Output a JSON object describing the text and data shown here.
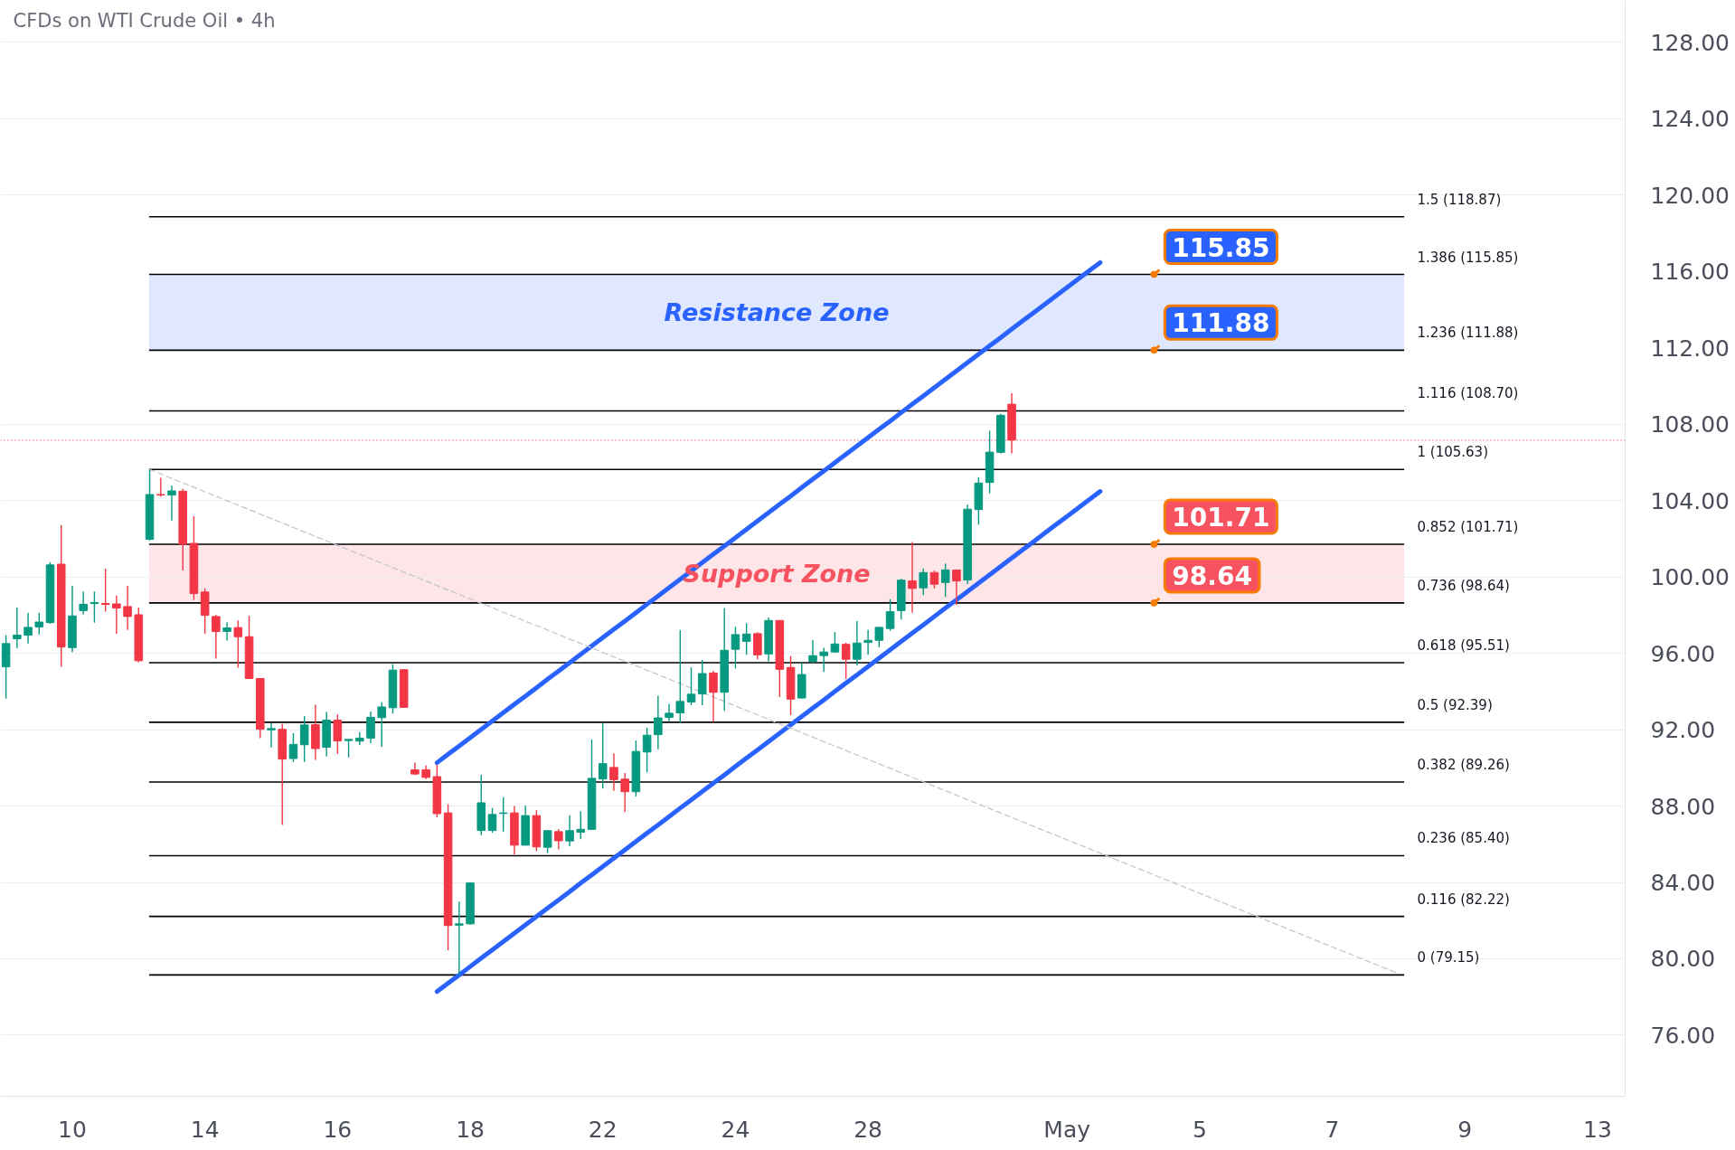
{
  "chart_data": {
    "type": "candlestick",
    "title": "CFDs on WTI Crude Oil • 4h",
    "categories": [
      null,
      null,
      null,
      null,
      null,
      null,
      "10",
      null,
      null,
      null,
      null,
      null,
      null,
      null,
      null,
      null,
      null,
      null,
      "14",
      null,
      null,
      null,
      null,
      null,
      null,
      null,
      null,
      null,
      null,
      null,
      "16",
      null,
      null,
      null,
      null,
      null,
      null,
      null,
      null,
      null,
      null,
      null,
      "18",
      null,
      null,
      null,
      null,
      null,
      null,
      null,
      null,
      null,
      null,
      null,
      "22",
      null,
      null,
      null,
      null,
      null,
      null,
      null,
      null,
      null,
      null,
      null,
      "24",
      null,
      null,
      null,
      null,
      null,
      null,
      null,
      null,
      null,
      null,
      null,
      "28",
      null,
      null,
      null,
      null,
      null,
      null,
      null,
      null,
      null,
      null,
      null,
      null,
      null,
      null,
      null,
      null,
      null,
      "May",
      null,
      null,
      null,
      null,
      null,
      null,
      null,
      null,
      null,
      null,
      null,
      "5",
      null,
      null,
      null,
      null,
      null,
      null,
      null,
      null,
      null,
      null,
      null,
      "7",
      null,
      null,
      null,
      null,
      null,
      null,
      null,
      null,
      null,
      null,
      null,
      "9",
      null,
      null,
      null,
      null,
      null,
      null,
      null,
      null,
      null,
      null,
      null,
      "13",
      null,
      null
    ],
    "ohlc": [
      [
        95.29,
        96.95,
        93.63,
        96.51
      ],
      [
        96.76,
        98.4,
        96.27,
        96.95
      ],
      [
        96.95,
        98.13,
        96.52,
        97.36
      ],
      [
        97.38,
        98.12,
        96.99,
        97.64
      ],
      [
        97.61,
        100.78,
        97.55,
        100.63
      ],
      [
        100.67,
        102.71,
        95.29,
        96.33
      ],
      [
        96.3,
        99.54,
        96.07,
        97.96
      ],
      [
        98.24,
        99.24,
        98.04,
        98.57
      ],
      [
        98.61,
        99.24,
        97.61,
        98.66
      ],
      [
        98.61,
        100.44,
        98.18,
        98.56
      ],
      [
        98.59,
        99.02,
        97.03,
        98.37
      ],
      [
        98.45,
        99.54,
        97.23,
        97.93
      ],
      [
        98.02,
        98.4,
        95.53,
        95.61
      ],
      [
        101.97,
        105.63,
        101.92,
        104.32
      ],
      [
        104.32,
        105.19,
        104.21,
        104.29
      ],
      [
        104.29,
        104.79,
        102.96,
        104.51
      ],
      [
        104.49,
        104.63,
        100.34,
        101.71
      ],
      [
        101.76,
        103.18,
        98.8,
        99.13
      ],
      [
        99.21,
        99.4,
        97.03,
        97.99
      ],
      [
        97.93,
        98.01,
        95.72,
        97.14
      ],
      [
        97.15,
        97.63,
        96.67,
        97.33
      ],
      [
        97.35,
        97.72,
        95.25,
        96.87
      ],
      [
        96.87,
        97.96,
        94.66,
        94.68
      ],
      [
        94.68,
        94.7,
        91.56,
        92.02
      ],
      [
        91.99,
        92.34,
        91.07,
        92.06
      ],
      [
        92.02,
        92.3,
        87.01,
        90.46
      ],
      [
        90.49,
        91.82,
        90.31,
        91.23
      ],
      [
        91.21,
        92.71,
        90.31,
        92.25
      ],
      [
        92.26,
        93.31,
        90.42,
        91.01
      ],
      [
        91.08,
        92.93,
        90.6,
        92.5
      ],
      [
        92.5,
        92.8,
        90.73,
        91.41
      ],
      [
        91.43,
        91.51,
        90.55,
        91.49
      ],
      [
        91.4,
        91.88,
        91.19,
        91.56
      ],
      [
        91.56,
        92.95,
        91.29,
        92.65
      ],
      [
        92.63,
        93.44,
        91.1,
        93.19
      ],
      [
        93.15,
        95.43,
        92.85,
        95.12
      ],
      [
        95.14,
        95.16,
        93.15,
        93.17
      ],
      [
        89.9,
        90.27,
        89.63,
        89.68
      ],
      [
        89.9,
        90.13,
        89.41,
        89.5
      ],
      [
        89.54,
        90.16,
        87.41,
        87.6
      ],
      [
        87.64,
        88.1,
        80.45,
        81.74
      ],
      [
        81.76,
        82.99,
        79.15,
        81.83
      ],
      [
        81.83,
        84.0,
        81.79,
        83.97
      ],
      [
        86.72,
        89.64,
        86.48,
        88.17
      ],
      [
        86.72,
        87.9,
        86.6,
        87.56
      ],
      [
        87.61,
        88.46,
        86.66,
        87.64
      ],
      [
        87.64,
        88.0,
        85.47,
        85.95
      ],
      [
        85.95,
        88.03,
        85.93,
        87.5
      ],
      [
        87.5,
        87.78,
        85.64,
        85.86
      ],
      [
        85.84,
        86.74,
        85.54,
        86.71
      ],
      [
        86.66,
        86.79,
        85.73,
        86.18
      ],
      [
        86.17,
        87.52,
        85.9,
        86.71
      ],
      [
        86.63,
        87.73,
        86.26,
        86.78
      ],
      [
        86.78,
        91.49,
        86.76,
        89.45
      ],
      [
        89.42,
        92.35,
        88.91,
        90.22
      ],
      [
        90.02,
        90.76,
        88.8,
        89.38
      ],
      [
        89.41,
        89.73,
        87.68,
        88.75
      ],
      [
        88.75,
        91.43,
        88.5,
        90.86
      ],
      [
        90.83,
        92.1,
        89.76,
        91.71
      ],
      [
        91.74,
        93.78,
        90.98,
        92.62
      ],
      [
        92.64,
        93.35,
        92.45,
        92.86
      ],
      [
        92.88,
        97.22,
        92.37,
        93.48
      ],
      [
        93.45,
        95.26,
        93.28,
        93.86
      ],
      [
        93.87,
        95.65,
        93.28,
        94.94
      ],
      [
        94.97,
        95.08,
        92.41,
        93.96
      ],
      [
        93.96,
        98.37,
        92.99,
        96.16
      ],
      [
        96.21,
        97.39,
        95.21,
        96.98
      ],
      [
        96.63,
        97.58,
        95.92,
        97.01
      ],
      [
        97.03,
        97.11,
        95.69,
        95.92
      ],
      [
        95.97,
        97.88,
        95.58,
        97.72
      ],
      [
        97.72,
        97.74,
        93.71,
        95.16
      ],
      [
        95.26,
        95.86,
        92.76,
        93.6
      ],
      [
        93.66,
        95.53,
        93.64,
        94.89
      ],
      [
        95.58,
        96.69,
        95.45,
        95.88
      ],
      [
        95.88,
        96.29,
        95.02,
        96.07
      ],
      [
        96.07,
        97.11,
        96.05,
        96.49
      ],
      [
        96.47,
        96.55,
        94.66,
        95.69
      ],
      [
        95.69,
        97.69,
        95.37,
        96.54
      ],
      [
        96.57,
        97.23,
        95.92,
        96.68
      ],
      [
        96.68,
        97.38,
        96.32,
        97.36
      ],
      [
        97.3,
        98.84,
        97.18,
        98.18
      ],
      [
        98.24,
        99.9,
        97.77,
        99.83
      ],
      [
        99.79,
        101.83,
        98.13,
        99.4
      ],
      [
        99.43,
        100.45,
        99.05,
        100.23
      ],
      [
        100.23,
        100.34,
        99.4,
        99.62
      ],
      [
        99.71,
        100.7,
        98.95,
        100.37
      ],
      [
        100.36,
        100.38,
        98.53,
        99.79
      ],
      [
        99.84,
        103.78,
        99.63,
        103.55
      ],
      [
        103.53,
        105.23,
        102.74,
        104.92
      ],
      [
        104.95,
        107.66,
        104.38,
        106.54
      ],
      [
        106.53,
        108.55,
        106.47,
        108.47
      ],
      [
        109.05,
        109.62,
        106.47,
        107.17
      ],
      null,
      null,
      null,
      null,
      null,
      null,
      null,
      null,
      null,
      null,
      null,
      null,
      null,
      null,
      null,
      null,
      null,
      null,
      null,
      null,
      null,
      null,
      null,
      null,
      null,
      null,
      null,
      null,
      null,
      null,
      null,
      null,
      null,
      null,
      null,
      null,
      null,
      null,
      null,
      null,
      null,
      null,
      null,
      null,
      null,
      null,
      null,
      null,
      null,
      null,
      null,
      null,
      null,
      null,
      null
    ],
    "colors": [
      "#089981",
      "#089981",
      "#089981",
      "#089981",
      "#089981",
      "#f23645",
      "#089981",
      "#089981",
      "#089981",
      "#f23645",
      "#f23645",
      "#f23645",
      "#f23645",
      "#089981",
      "#f23645",
      "#089981",
      "#f23645",
      "#f23645",
      "#f23645",
      "#f23645",
      "#089981",
      "#f23645",
      "#f23645",
      "#f23645",
      "#089981",
      "#f23645",
      "#089981",
      "#089981",
      "#f23645",
      "#089981",
      "#f23645",
      "#089981",
      "#089981",
      "#089981",
      "#089981",
      "#089981",
      "#f23645",
      "#f23645",
      "#f23645",
      "#f23645",
      "#f23645",
      "#089981",
      "#089981",
      "#089981",
      "#089981",
      "#089981",
      "#f23645",
      "#089981",
      "#f23645",
      "#089981",
      "#f23645",
      "#089981",
      "#089981",
      "#089981",
      "#089981",
      "#f23645",
      "#f23645",
      "#089981",
      "#089981",
      "#089981",
      "#089981",
      "#089981",
      "#089981",
      "#089981",
      "#f23645",
      "#089981",
      "#089981",
      "#089981",
      "#f23645",
      "#089981",
      "#f23645",
      "#f23645",
      "#089981",
      "#089981",
      "#089981",
      "#089981",
      "#f23645",
      "#089981",
      "#089981",
      "#089981",
      "#089981",
      "#089981",
      "#f23645",
      "#089981",
      "#f23645",
      "#089981",
      "#f23645",
      "#089981",
      "#089981",
      "#089981",
      "#089981",
      "#f23645",
      null,
      null,
      null,
      null,
      null,
      null,
      null,
      null,
      null,
      null,
      null,
      null,
      null,
      null,
      null,
      null,
      null,
      null,
      null,
      null,
      null,
      null,
      null,
      null,
      null,
      null,
      null,
      null,
      null,
      null,
      null,
      null,
      null,
      null,
      null,
      null,
      null,
      null,
      null,
      null,
      null,
      null,
      null,
      null,
      null,
      null,
      null,
      null,
      null,
      null,
      null,
      null,
      null,
      null,
      null
    ],
    "series": [
      {
        "type": "line",
        "color": "#2962ff",
        "line_style": "solid",
        "values": [
          null,
          null,
          null,
          null,
          null,
          null,
          null,
          null,
          null,
          null,
          null,
          null,
          null,
          null,
          null,
          null,
          null,
          null,
          null,
          null,
          null,
          null,
          null,
          null,
          null,
          null,
          null,
          null,
          null,
          null,
          null,
          null,
          null,
          null,
          null,
          null,
          null,
          null,
          null,
          90.27,
          90.71,
          91.14,
          91.58,
          92.02,
          92.45,
          92.89,
          93.33,
          93.76,
          94.2,
          94.64,
          95.07,
          95.51,
          95.95,
          96.38,
          96.82,
          97.26,
          97.69,
          98.13,
          98.57,
          99.0,
          99.44,
          99.88,
          100.31,
          100.75,
          101.19,
          101.62,
          102.06,
          102.5,
          102.93,
          103.37,
          103.81,
          104.24,
          104.68,
          105.12,
          105.55,
          105.99,
          106.43,
          106.86,
          107.3,
          107.74,
          108.17,
          108.61,
          109.05,
          109.48,
          109.92,
          110.36,
          110.79,
          111.23,
          111.67,
          112.11,
          112.54,
          112.98,
          113.42,
          113.85,
          114.29,
          114.73,
          115.16,
          115.6,
          116.04,
          116.47,
          null,
          null,
          null,
          null,
          null,
          null,
          null,
          null,
          null,
          null,
          null,
          null,
          null,
          null,
          null,
          null,
          null,
          null,
          null,
          null,
          null,
          null,
          null,
          null,
          null,
          null,
          null,
          null,
          null,
          null,
          null,
          null,
          null,
          null,
          null,
          null,
          null,
          null,
          null,
          null,
          null,
          null,
          null,
          null,
          null,
          null,
          null
        ]
      },
      {
        "type": "line",
        "color": "#2962ff",
        "line_style": "solid",
        "values": [
          null,
          null,
          null,
          null,
          null,
          null,
          null,
          null,
          null,
          null,
          null,
          null,
          null,
          null,
          null,
          null,
          null,
          null,
          null,
          null,
          null,
          null,
          null,
          null,
          null,
          null,
          null,
          null,
          null,
          null,
          null,
          null,
          null,
          null,
          null,
          null,
          null,
          null,
          null,
          78.28,
          78.72,
          79.15,
          79.59,
          80.03,
          80.46,
          80.9,
          81.34,
          81.77,
          82.21,
          82.65,
          83.08,
          83.52,
          83.96,
          84.39,
          84.83,
          85.27,
          85.7,
          86.14,
          86.58,
          87.01,
          87.45,
          87.89,
          88.32,
          88.76,
          89.2,
          89.63,
          90.07,
          90.51,
          90.94,
          91.38,
          91.82,
          92.25,
          92.69,
          93.13,
          93.56,
          94.0,
          94.44,
          94.87,
          95.31,
          95.75,
          96.18,
          96.62,
          97.06,
          97.49,
          97.93,
          98.37,
          98.8,
          99.24,
          99.68,
          100.12,
          100.55,
          100.99,
          101.43,
          101.86,
          102.3,
          102.74,
          103.17,
          103.61,
          104.05,
          104.48,
          null,
          null,
          null,
          null,
          null,
          null,
          null,
          null,
          null,
          null,
          null,
          null,
          null,
          null,
          null,
          null,
          null,
          null,
          null,
          null,
          null,
          null,
          null,
          null,
          null,
          null,
          null,
          null,
          null,
          null,
          null,
          null,
          null,
          null,
          null,
          null,
          null,
          null,
          null,
          null,
          null,
          null,
          null,
          null,
          null,
          null,
          null
        ]
      },
      {
        "type": "line",
        "color": "#c3c6cd",
        "line_style": "dashed",
        "values": [
          null,
          null,
          null,
          null,
          null,
          null,
          null,
          null,
          null,
          null,
          null,
          null,
          null,
          105.63,
          105.4,
          105.16,
          104.93,
          104.7,
          104.46,
          104.23,
          103.99,
          103.76,
          103.53,
          103.29,
          103.06,
          102.83,
          102.59,
          102.36,
          102.12,
          101.89,
          101.66,
          101.42,
          101.19,
          100.96,
          100.72,
          100.49,
          100.25,
          100.02,
          99.79,
          99.55,
          99.32,
          99.09,
          98.85,
          98.62,
          98.39,
          98.15,
          97.92,
          97.68,
          97.45,
          97.22,
          96.98,
          96.75,
          96.52,
          96.28,
          96.05,
          95.81,
          95.58,
          95.35,
          95.11,
          94.88,
          94.65,
          94.41,
          94.18,
          93.95,
          93.71,
          93.48,
          93.24,
          93.01,
          92.78,
          92.54,
          92.31,
          92.08,
          91.84,
          91.61,
          91.37,
          91.14,
          90.91,
          90.67,
          90.44,
          90.21,
          89.97,
          89.74,
          89.5,
          89.27,
          89.04,
          88.8,
          88.57,
          88.34,
          88.1,
          87.87,
          87.64,
          87.4,
          87.17,
          86.93,
          86.7,
          86.47,
          86.23,
          86.0,
          85.77,
          85.53,
          85.3,
          85.06,
          84.83,
          84.6,
          84.36,
          84.13,
          83.9,
          83.66,
          83.43,
          83.19,
          82.96,
          82.73,
          82.49,
          82.26,
          82.03,
          81.79,
          81.56,
          81.33,
          81.09,
          80.86,
          80.62,
          80.39,
          80.16,
          79.92,
          79.69,
          79.46,
          79.22,
          null,
          null,
          null,
          null,
          null,
          null,
          null,
          null,
          null,
          null,
          null,
          null,
          null,
          null,
          null,
          null,
          null,
          null,
          null,
          null
        ]
      }
    ],
    "ref_lines": [
      {
        "axis": "y",
        "value": 118.87,
        "label": "1.5 (118.87)"
      },
      {
        "axis": "y",
        "value": 115.85,
        "label": "1.386 (115.85)"
      },
      {
        "axis": "y",
        "value": 111.88,
        "label": "1.236 (111.88)"
      },
      {
        "axis": "y",
        "value": 108.7,
        "label": "1.116 (108.70)"
      },
      {
        "axis": "y",
        "value": 105.63,
        "label": "1 (105.63)"
      },
      {
        "axis": "y",
        "value": 101.71,
        "label": "0.852 (101.71)"
      },
      {
        "axis": "y",
        "value": 98.64,
        "label": "0.736 (98.64)"
      },
      {
        "axis": "y",
        "value": 95.51,
        "label": "0.618 (95.51)"
      },
      {
        "axis": "y",
        "value": 92.39,
        "label": "0.5 (92.39)"
      },
      {
        "axis": "y",
        "value": 89.26,
        "label": "0.382 (89.26)"
      },
      {
        "axis": "y",
        "value": 85.4,
        "label": "0.236 (85.40)"
      },
      {
        "axis": "y",
        "value": 82.22,
        "label": "0.116 (82.22)"
      },
      {
        "axis": "y",
        "value": 79.15,
        "label": "0 (79.15)"
      },
      {
        "axis": "y",
        "value": 107.17,
        "color": "#f23645",
        "line_style": "dotted"
      }
    ],
    "bands": [
      {
        "axis": "y",
        "from": 111.88,
        "to": 115.85,
        "label": "Resistance Zone",
        "color": "#2962ff"
      },
      {
        "axis": "y",
        "from": 98.64,
        "to": 101.71,
        "label": "Support Zone",
        "color": "#f7525f"
      }
    ],
    "annotations": [
      {
        "text": "115.85",
        "y": 115.85
      },
      {
        "text": "111.88",
        "y": 111.88
      },
      {
        "text": "101.71",
        "y": 101.71
      },
      {
        "text": "98.64",
        "y": 98.64
      }
    ],
    "ylim": [
      72.8,
      130.2
    ],
    "yticks": [
      {
        "value": 76,
        "label": "76.00"
      },
      {
        "value": 80,
        "label": "80.00"
      },
      {
        "value": 84,
        "label": "84.00"
      },
      {
        "value": 88,
        "label": "88.00"
      },
      {
        "value": 92,
        "label": "92.00"
      },
      {
        "value": 96,
        "label": "96.00"
      },
      {
        "value": 100,
        "label": "100.00"
      },
      {
        "value": 104,
        "label": "104.00"
      },
      {
        "value": 108,
        "label": "108.00"
      },
      {
        "value": 112,
        "label": "112.00"
      },
      {
        "value": 116,
        "label": "116.00"
      },
      {
        "value": 120,
        "label": "120.00"
      },
      {
        "value": 124,
        "label": "124.00"
      },
      {
        "value": 128,
        "label": "128.00"
      }
    ],
    "grid": "y"
  }
}
